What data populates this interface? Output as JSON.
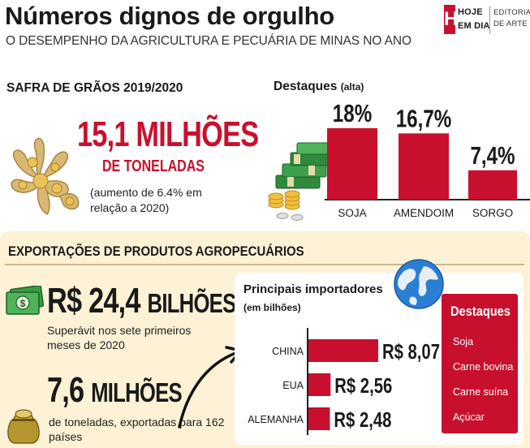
{
  "header": {
    "title": "Números dignos de orgulho",
    "subtitle": "O DESEMPENHO DA AGRICULTURA E PECUÁRIA DE MINAS NO ANO",
    "logo_letter": "H",
    "logo_line1": "HOJE",
    "logo_line2": "EM DIA",
    "editoria_line1": "EDITORIA",
    "editoria_line2": "DE ARTE"
  },
  "safra": {
    "title": "SAFRA DE GRÃOS 2019/2020",
    "value": "15,1 MILHÕES",
    "unit": "DE TONELADAS",
    "note": "(aumento de 6.4% em relação a 2020)"
  },
  "exportacoes": {
    "title": "EXPORTAÇÕES DE PRODUTOS AGROPECUÁRIOS",
    "value1_big": "R$ 24,4",
    "value1_small": "BILHÕES",
    "value1_desc": "Superávit nos sete primeiros meses de 2020",
    "value2_big": "7,6",
    "value2_small": "MILHÕES",
    "value2_desc": "de toneladas, exportadas para 162 países"
  },
  "importadores": {
    "title": "Principais importadores",
    "subtitle": "(em bilhões)"
  },
  "destaques_box": {
    "title": "Destaques",
    "items": [
      "Soja",
      "Carne bovina",
      "Carne suína",
      "Açúcar"
    ]
  },
  "colors": {
    "accent": "#c8102e",
    "panel": "#fdf2d6"
  },
  "icons": [
    "grain-icon",
    "money-stack-icon",
    "cash-icon",
    "sack-icon",
    "globe-icon",
    "arrow-icon"
  ],
  "chart_data": [
    {
      "type": "bar",
      "title": "Destaques",
      "subtitle": "(alta)",
      "categories": [
        "SOJA",
        "AMENDOIM",
        "SORGO"
      ],
      "values": [
        18,
        16.7,
        7.4
      ],
      "labels": [
        "18%",
        "16,7%",
        "7,4%"
      ],
      "ylim": [
        0,
        20
      ]
    },
    {
      "type": "bar",
      "orientation": "horizontal",
      "title": "Principais importadores",
      "subtitle": "(em bilhões)",
      "categories": [
        "CHINA",
        "EUA",
        "ALEMANHA"
      ],
      "values": [
        8.07,
        2.56,
        2.48
      ],
      "labels": [
        "R$ 8,07",
        "R$ 2,56",
        "R$ 2,48"
      ],
      "xlim": [
        0,
        8.07
      ]
    }
  ]
}
